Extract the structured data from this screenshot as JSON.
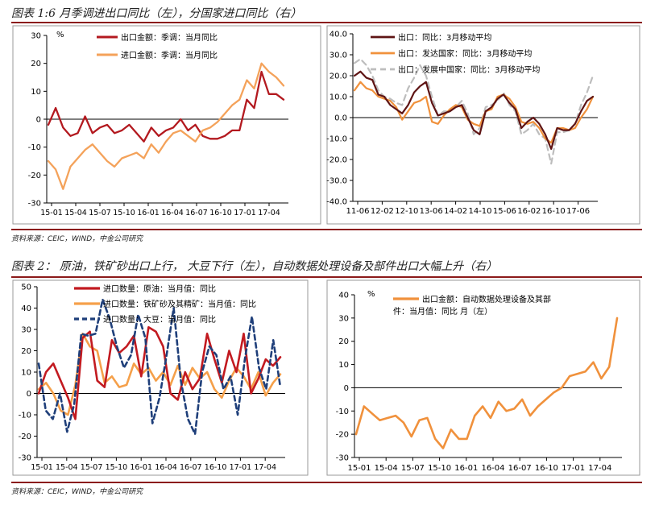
{
  "figures": [
    {
      "title": "图表 1:6 月季调进出口同比（左），分国家进口同比（右）",
      "source": "资料来源：CEIC，WIND，中金公司研究"
    },
    {
      "title": "图表 2： 原油，铁矿砂出口上行， 大豆下行（左），自动数据处理设备及部件出口大幅上升（右）",
      "source": "资料来源：CEIC，WIND，中金公司研究"
    }
  ],
  "chart_data": [
    {
      "id": "c1",
      "type": "line",
      "unit": "%",
      "ylim": [
        -30,
        30
      ],
      "yticks": [
        "30",
        "20",
        "10",
        "0",
        "-10",
        "-20",
        "-30"
      ],
      "xticks": [
        "15-01",
        "15-04",
        "15-07",
        "15-10",
        "16-01",
        "16-04",
        "16-07",
        "16-10",
        "17-01",
        "17-04"
      ],
      "legend": [
        "出口金额：季调：当月同比",
        "进口金额：季调：当月同比"
      ],
      "series": [
        {
          "name": "出口金额：季调：当月同比",
          "color": "#b3191f",
          "dash": "",
          "width": 2.3,
          "values": [
            -2,
            4,
            -3,
            -6,
            -5,
            1,
            -5,
            -3,
            -2,
            -5,
            -4,
            -2,
            -5,
            -8,
            -3,
            -6,
            -4,
            -3,
            0,
            -4,
            -2,
            -6,
            -7,
            -7,
            -6,
            -4,
            -4,
            7,
            4,
            17,
            9,
            9,
            7
          ]
        },
        {
          "name": "进口金额：季调：当月同比",
          "color": "#f4a25a",
          "dash": "",
          "width": 2.3,
          "values": [
            -15,
            -18,
            -25,
            -17,
            -14,
            -11,
            -9,
            -12,
            -15,
            -17,
            -14,
            -13,
            -12,
            -14,
            -9,
            -12,
            -8,
            -5,
            -4,
            -6,
            -8,
            -4,
            -3,
            -1,
            2,
            5,
            7,
            14,
            11,
            20,
            17,
            15,
            12
          ]
        }
      ]
    },
    {
      "id": "c2",
      "type": "line",
      "unit": "",
      "ylim": [
        -40,
        40
      ],
      "yticks": [
        "40.0",
        "30.0",
        "20.0",
        "10.0",
        "0.0",
        "-10.0",
        "-20.0",
        "-30.0",
        "-40.0"
      ],
      "xticks": [
        "11-06",
        "12-02",
        "12-10",
        "13-06",
        "14-02",
        "14-10",
        "15-06",
        "16-02",
        "16-10",
        "17-06"
      ],
      "legend": [
        "出口：同比：3月移动平均",
        "出口：发达国家：同比：3月移动平均",
        "出口：发展中国家：同比：3月移动平均"
      ],
      "series": [
        {
          "name": "出口：发展中国家：同比：3月移动平均",
          "color": "#bdbdbd",
          "dash": "7,5",
          "width": 2.2,
          "values": [
            26,
            28,
            25,
            20,
            13,
            10,
            9,
            7,
            6,
            14,
            19,
            25,
            20,
            10,
            1,
            3,
            3,
            5,
            8,
            2,
            -8,
            -5,
            5,
            6,
            8,
            12,
            6,
            3,
            -8,
            -6,
            -3,
            -8,
            -10,
            -22,
            -7,
            -7,
            -6,
            -3,
            6,
            12,
            20
          ]
        },
        {
          "name": "出口：发达国家：同比：3月移动平均",
          "color": "#f0913c",
          "dash": "",
          "width": 2.2,
          "values": [
            13,
            17,
            14,
            13,
            10,
            9,
            8,
            5,
            -1,
            3,
            7,
            8,
            10,
            -2,
            -3,
            1,
            4,
            6,
            5,
            -1,
            -3,
            -4,
            3,
            4,
            10,
            11,
            9,
            5,
            -2,
            -3,
            -2,
            -5,
            -10,
            -12,
            -5,
            -5,
            -6,
            -5,
            0,
            4,
            10
          ]
        },
        {
          "name": "出口：同比：3月移动平均",
          "color": "#5e1414",
          "dash": "",
          "width": 2.2,
          "values": [
            20,
            22,
            19,
            18,
            11,
            10,
            6,
            4,
            2,
            6,
            12,
            15,
            17,
            7,
            1,
            2,
            3,
            5,
            6,
            0,
            -6,
            -8,
            3,
            5,
            9,
            11,
            7,
            4,
            -5,
            -2,
            0,
            -3,
            -8,
            -15,
            -5,
            -6,
            -6,
            -3,
            3,
            8,
            10
          ]
        }
      ]
    },
    {
      "id": "c3",
      "type": "line",
      "unit": "%",
      "ylim": [
        -30,
        50
      ],
      "yticks": [
        "50",
        "40",
        "30",
        "20",
        "10",
        "0",
        "-10",
        "-20",
        "-30"
      ],
      "xticks": [
        "15-01",
        "15-04",
        "15-07",
        "15-10",
        "16-01",
        "16-04",
        "16-07",
        "16-10",
        "17-01",
        "17-04"
      ],
      "legend": [
        "进口数量：原油：当月值：同比",
        "进口数量：铁矿砂及其精矿：当月值：同比",
        "进口数量：大豆：当月值：同比"
      ],
      "series": [
        {
          "name": "进口数量：铁矿砂及其精矿：当月值：同比",
          "color": "#f5a04a",
          "dash": "",
          "width": 2.6,
          "values": [
            2,
            5,
            0,
            -8,
            -10,
            4,
            28,
            22,
            20,
            5,
            8,
            3,
            4,
            14,
            9,
            12,
            6,
            10,
            4,
            13,
            4,
            12,
            7,
            10,
            2,
            -2,
            6,
            12,
            8,
            2,
            10,
            -1,
            5,
            9
          ]
        },
        {
          "name": "进口数量：原油：当月值：同比",
          "color": "#c21a20",
          "dash": "",
          "width": 2.6,
          "values": [
            0,
            10,
            14,
            6,
            -2,
            -12,
            26,
            29,
            6,
            3,
            25,
            19,
            22,
            27,
            8,
            31,
            29,
            22,
            0,
            -3,
            10,
            2,
            7,
            28,
            16,
            5,
            20,
            10,
            28,
            0,
            7,
            16,
            13,
            17
          ]
        },
        {
          "name": "进口数量：大豆：当月值：同比",
          "color": "#1f3f7a",
          "dash": "6,4",
          "width": 2.6,
          "values": [
            14,
            -8,
            -12,
            0,
            -18,
            -5,
            28,
            27,
            28,
            44,
            35,
            22,
            12,
            18,
            37,
            26,
            -14,
            -2,
            18,
            40,
            6,
            -12,
            -19,
            10,
            22,
            18,
            2,
            8,
            -10,
            16,
            36,
            12,
            2,
            25,
            3
          ]
        }
      ]
    },
    {
      "id": "c4",
      "type": "line",
      "unit": "%",
      "ylim": [
        -30,
        40
      ],
      "yticks": [
        "40",
        "30",
        "20",
        "10",
        "0",
        "-10",
        "-20",
        "-30"
      ],
      "xticks": [
        "15-01",
        "15-04",
        "15-07",
        "15-10",
        "16-01",
        "16-04",
        "16-07",
        "16-10",
        "17-01",
        "17-04"
      ],
      "legend": [
        "出口金额：自动数据处理设备及其部件：当月值：同比 月（左）"
      ],
      "legend_lines": [
        "出口金额：自动数据处理设备及其部",
        "件：当月值：同比 月（左）"
      ],
      "series": [
        {
          "name": "出口金额：自动数据处理设备及其部件：当月值：同比",
          "color": "#f0913c",
          "dash": "",
          "width": 2.6,
          "values": [
            -20,
            -8,
            -11,
            -14,
            -13,
            -12,
            -15,
            -21,
            -14,
            -13,
            -22,
            -26,
            -18,
            -22,
            -22,
            -12,
            -8,
            -13,
            -6,
            -10,
            -9,
            -5,
            -12,
            -8,
            -5,
            -2,
            0,
            5,
            6,
            7,
            11,
            4,
            9,
            30
          ]
        }
      ]
    }
  ]
}
